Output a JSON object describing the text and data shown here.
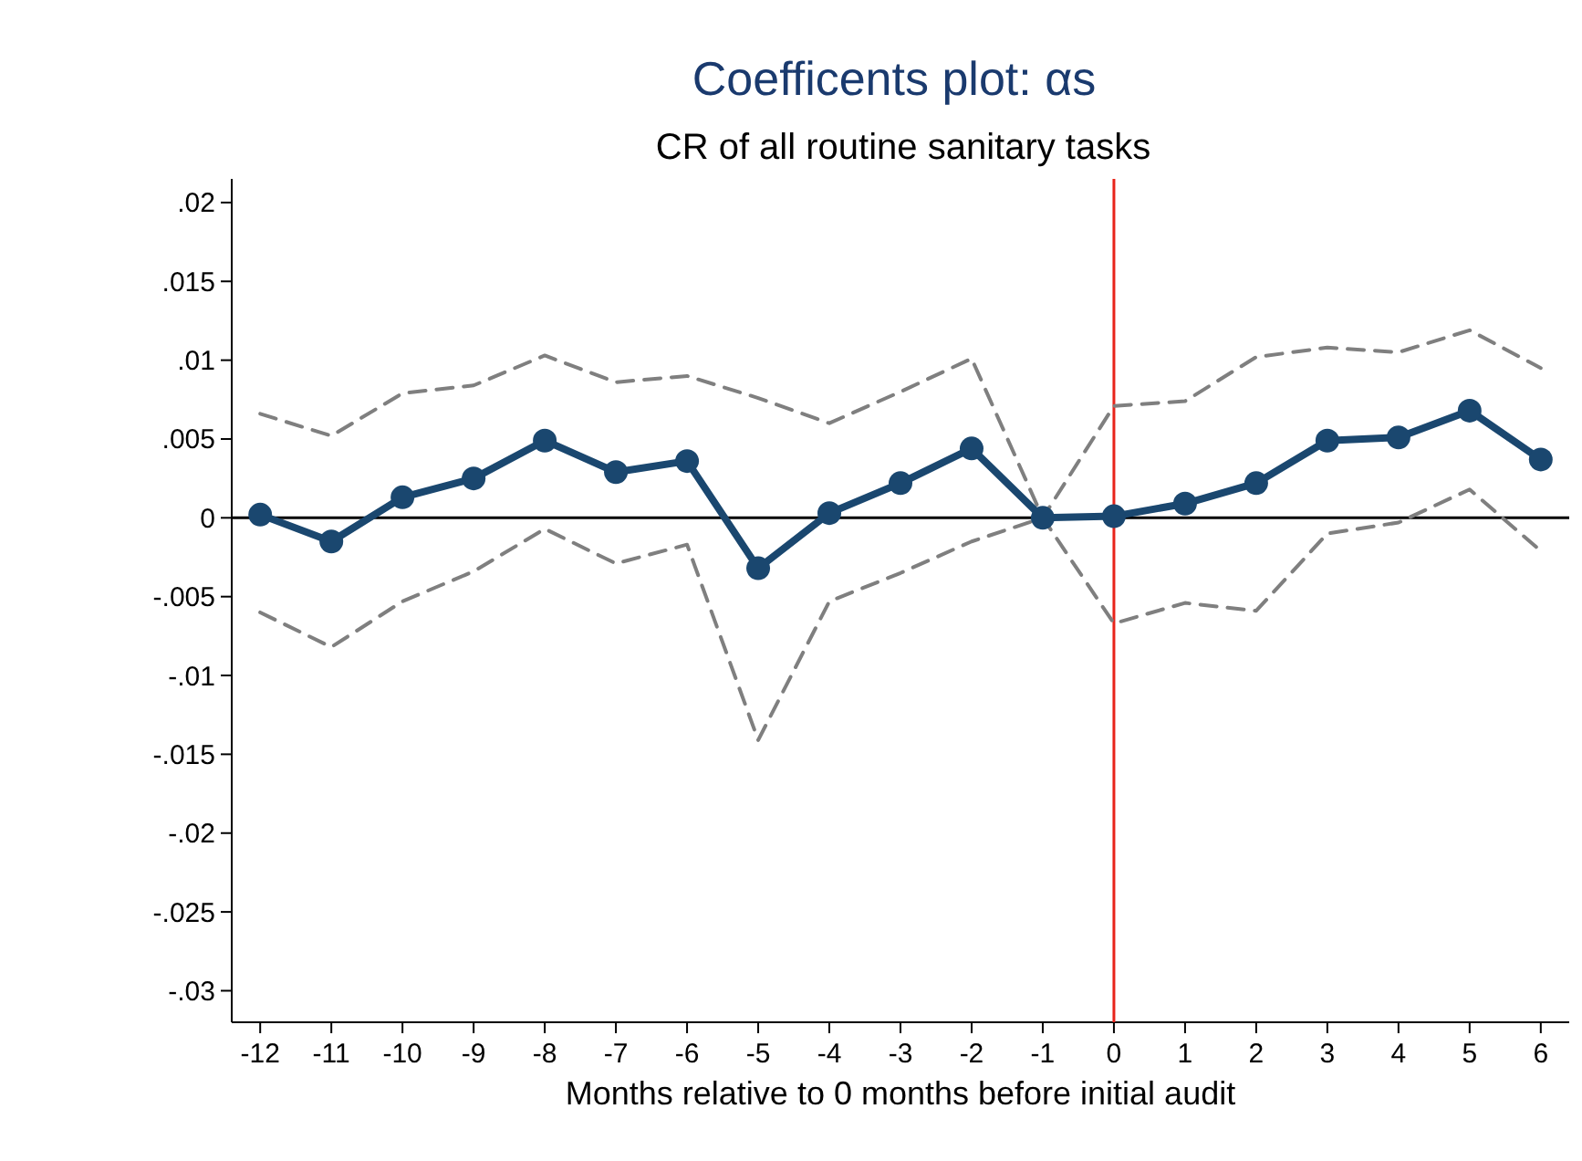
{
  "chart_data": {
    "type": "line",
    "title": "Coefficents plot: αs",
    "subtitle": "CR of all routine sanitary tasks",
    "xlabel": "Months relative to 0 months before initial audit",
    "x": [
      -12,
      -11,
      -10,
      -9,
      -8,
      -7,
      -6,
      -5,
      -4,
      -3,
      -2,
      -1,
      0,
      1,
      2,
      3,
      4,
      5,
      6
    ],
    "series": [
      {
        "color": "#7f7f7f",
        "line_style": "dashed",
        "marker": "none",
        "values": [
          0.0066,
          0.0052,
          0.0079,
          0.0084,
          0.0103,
          0.0086,
          0.009,
          0.0076,
          0.006,
          0.008,
          0.0101,
          0,
          0.0071,
          0.0074,
          0.0102,
          0.0108,
          0.0105,
          0.0119,
          0.0095
        ]
      },
      {
        "color": "#7f7f7f",
        "line_style": "dashed",
        "marker": "none",
        "values": [
          -0.006,
          -0.0082,
          -0.0053,
          -0.0034,
          -0.0007,
          -0.0029,
          -0.0017,
          -0.0141,
          -0.0053,
          -0.0035,
          -0.0015,
          0,
          -0.0067,
          -0.0054,
          -0.0059,
          -0.001,
          -0.0003,
          0.0018,
          -0.0021
        ]
      },
      {
        "color": "#1a476f",
        "line_style": "solid",
        "marker": "circle",
        "values": [
          0.0002,
          -0.0015,
          0.0013,
          0.0025,
          0.0049,
          0.0029,
          0.0036,
          -0.0032,
          0.0003,
          0.0022,
          0.0044,
          0,
          0.0001,
          0.0009,
          0.0022,
          0.0049,
          0.0051,
          0.0068,
          0.0037
        ]
      }
    ],
    "xlim": [
      -12.4,
      6.4
    ],
    "xticks": [
      -12,
      -11,
      -10,
      -9,
      -8,
      -7,
      -6,
      -5,
      -4,
      -3,
      -2,
      -1,
      0,
      1,
      2,
      3,
      4,
      5,
      6
    ],
    "ylim": [
      -0.032,
      0.0215
    ],
    "yticks": [
      {
        "value": 0.02,
        "label": ".02"
      },
      {
        "value": 0.015,
        "label": ".015"
      },
      {
        "value": 0.01,
        "label": ".01"
      },
      {
        "value": 0.005,
        "label": ".005"
      },
      0,
      {
        "value": -0.005,
        "label": "-.005"
      },
      {
        "value": -0.01,
        "label": "-.01"
      },
      {
        "value": -0.015,
        "label": "-.015"
      },
      {
        "value": -0.02,
        "label": "-.02"
      },
      {
        "value": -0.025,
        "label": "-.025"
      },
      {
        "value": -0.03,
        "label": "-.03"
      }
    ],
    "ref_lines": [
      {
        "axis": "x",
        "value": 0,
        "color": "#e8241a"
      },
      {
        "axis": "y",
        "value": 0,
        "color": "#000000"
      }
    ],
    "grid": false
  }
}
